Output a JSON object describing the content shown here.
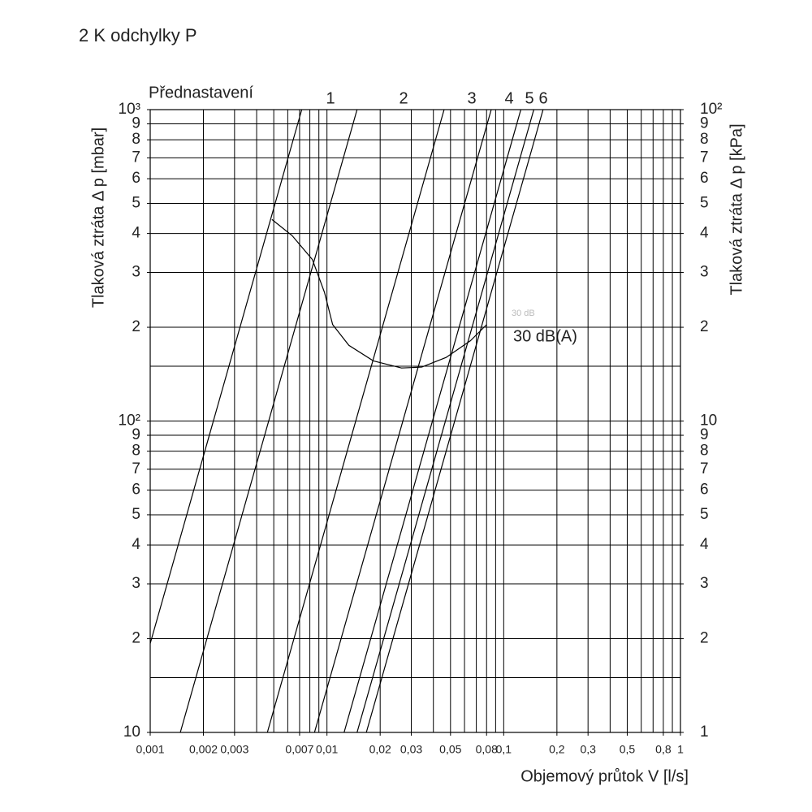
{
  "chart_data": {
    "type": "line",
    "title": "2 K odchylky P",
    "y_label": "Tlaková ztráta  Δ p [mbar]",
    "y2_label": "Tlaková ztráta  Δ p [kPa]",
    "x_label": "Objemový průtok V [l/s]",
    "preset_title": "Přednastavení",
    "preset_labels": [
      "1",
      "2",
      "3",
      "4",
      "5",
      "6"
    ],
    "log_x": true,
    "log_y": true,
    "grid": true,
    "xlim": [
      0.001,
      1
    ],
    "ylim": [
      10,
      1000
    ],
    "y2lim": [
      1,
      100
    ],
    "xticks": [
      {
        "value": 0.001,
        "label": "0,001"
      },
      {
        "value": 0.002,
        "label": "0,002"
      },
      {
        "value": 0.003,
        "label": "0,003"
      },
      {
        "value": 0.007,
        "label": "0,007"
      },
      {
        "value": 0.01,
        "label": "0,01"
      },
      {
        "value": 0.02,
        "label": "0,02"
      },
      {
        "value": 0.03,
        "label": "0,03"
      },
      {
        "value": 0.05,
        "label": "0,05"
      },
      {
        "value": 0.08,
        "label": "0,08"
      },
      {
        "value": 0.1,
        "label": "0,1"
      },
      {
        "value": 0.2,
        "label": "0,2"
      },
      {
        "value": 0.3,
        "label": "0,3"
      },
      {
        "value": 0.5,
        "label": "0,5"
      },
      {
        "value": 0.8,
        "label": "0,8"
      },
      1
    ],
    "xgrid": [
      0.001,
      0.002,
      0.003,
      0.004,
      0.005,
      0.006,
      0.007,
      0.008,
      0.009,
      0.01,
      0.02,
      0.03,
      0.04,
      0.05,
      0.06,
      0.07,
      0.08,
      0.09,
      0.1,
      0.2,
      0.3,
      0.4,
      0.5,
      0.6,
      0.7,
      0.8,
      0.9,
      1
    ],
    "yticks": [
      10,
      {
        "value": 20,
        "label": "2"
      },
      {
        "value": 30,
        "label": "3"
      },
      {
        "value": 40,
        "label": "4"
      },
      {
        "value": 50,
        "label": "5"
      },
      {
        "value": 60,
        "label": "6"
      },
      {
        "value": 70,
        "label": "7"
      },
      {
        "value": 80,
        "label": "8"
      },
      {
        "value": 90,
        "label": "9"
      },
      {
        "value": 100,
        "label": "10²"
      },
      {
        "value": 200,
        "label": "2"
      },
      {
        "value": 300,
        "label": "3"
      },
      {
        "value": 400,
        "label": "4"
      },
      {
        "value": 500,
        "label": "5"
      },
      {
        "value": 600,
        "label": "6"
      },
      {
        "value": 700,
        "label": "7"
      },
      {
        "value": 800,
        "label": "8"
      },
      {
        "value": 900,
        "label": "9"
      },
      {
        "value": 1000,
        "label": "10³"
      }
    ],
    "ygrid": [
      10,
      15,
      20,
      30,
      40,
      50,
      60,
      70,
      80,
      90,
      100,
      150,
      200,
      300,
      400,
      500,
      600,
      700,
      800,
      900,
      1000
    ],
    "y2ticks": [
      1,
      2,
      3,
      4,
      5,
      6,
      7,
      8,
      9,
      10,
      {
        "value": 20,
        "label": "2"
      },
      {
        "value": 30,
        "label": "3"
      },
      {
        "value": 40,
        "label": "4"
      },
      {
        "value": 50,
        "label": "5"
      },
      {
        "value": 60,
        "label": "6"
      },
      {
        "value": 70,
        "label": "7"
      },
      {
        "value": 80,
        "label": "8"
      },
      {
        "value": 90,
        "label": "9"
      },
      {
        "value": 100,
        "label": "10²"
      }
    ],
    "series": [
      {
        "x": [
          0.001,
          0.0072
        ],
        "values": [
          19.3,
          1000
        ],
        "color": "#000"
      },
      {
        "x": [
          0.00148,
          0.0148
        ],
        "values": [
          10,
          1000
        ],
        "color": "#000"
      },
      {
        "x": [
          0.0046,
          0.046
        ],
        "values": [
          10,
          1000
        ],
        "color": "#000"
      },
      {
        "x": [
          0.0085,
          0.085
        ],
        "values": [
          10,
          1000
        ],
        "color": "#000"
      },
      {
        "x": [
          0.0125,
          0.125
        ],
        "values": [
          10,
          1000
        ],
        "color": "#000"
      },
      {
        "x": [
          0.0148,
          0.148
        ],
        "values": [
          10,
          1000
        ],
        "color": "#000"
      },
      {
        "x": [
          0.0167,
          0.167
        ],
        "values": [
          10,
          1000
        ],
        "color": "#000"
      }
    ],
    "noise_curve": {
      "name": "30 dB(A)",
      "faint_label": "30 dB",
      "color": "#000",
      "x": [
        0.00488,
        0.00635,
        0.00827,
        0.00968,
        0.01077,
        0.0133,
        0.0183,
        0.0264,
        0.0344,
        0.0472,
        0.0648,
        0.0801
      ],
      "values": [
        444,
        394,
        330,
        259,
        204,
        175,
        156,
        148,
        149,
        160,
        181,
        204
      ]
    }
  }
}
